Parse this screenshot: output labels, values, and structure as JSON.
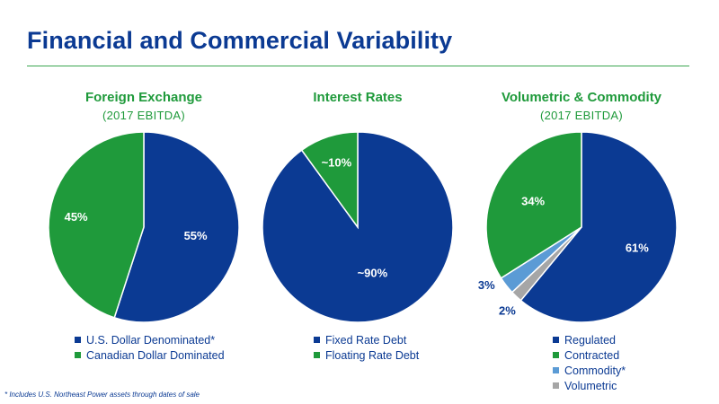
{
  "title": "Financial and Commercial Variability",
  "footnote": "* Includes U.S. Northeast Power assets through dates of sale",
  "colors": {
    "navy": "#0b3a93",
    "green": "#1f9a3b",
    "light_blue": "#5b9bd5",
    "gray": "#a6a6a6",
    "rule": "#3aa650"
  },
  "chart_data": [
    {
      "type": "pie",
      "title": "Foreign Exchange",
      "subtitle": "(2017 EBITDA)",
      "slices": [
        {
          "label": "U.S. Dollar Denominated*",
          "value": 55,
          "display": "55%",
          "color": "#0b3a93"
        },
        {
          "label": "Canadian Dollar Dominated",
          "value": 45,
          "display": "45%",
          "color": "#1f9a3b"
        }
      ]
    },
    {
      "type": "pie",
      "title": "Interest Rates",
      "subtitle": "",
      "slices": [
        {
          "label": "Fixed Rate Debt",
          "value": 90,
          "display": "~90%",
          "color": "#0b3a93"
        },
        {
          "label": "Floating Rate Debt",
          "value": 10,
          "display": "~10%",
          "color": "#1f9a3b"
        }
      ]
    },
    {
      "type": "pie",
      "title": "Volumetric & Commodity",
      "subtitle": "(2017 EBITDA)",
      "slices": [
        {
          "label": "Regulated",
          "value": 61,
          "display": "61%",
          "color": "#0b3a93"
        },
        {
          "label": "Volumetric",
          "value": 2,
          "display": "2%",
          "color": "#a6a6a6"
        },
        {
          "label": "Commodity*",
          "value": 3,
          "display": "3%",
          "color": "#5b9bd5"
        },
        {
          "label": "Contracted",
          "value": 34,
          "display": "34%",
          "color": "#1f9a3b"
        }
      ],
      "legend_order": [
        "Regulated",
        "Contracted",
        "Commodity*",
        "Volumetric"
      ]
    }
  ]
}
